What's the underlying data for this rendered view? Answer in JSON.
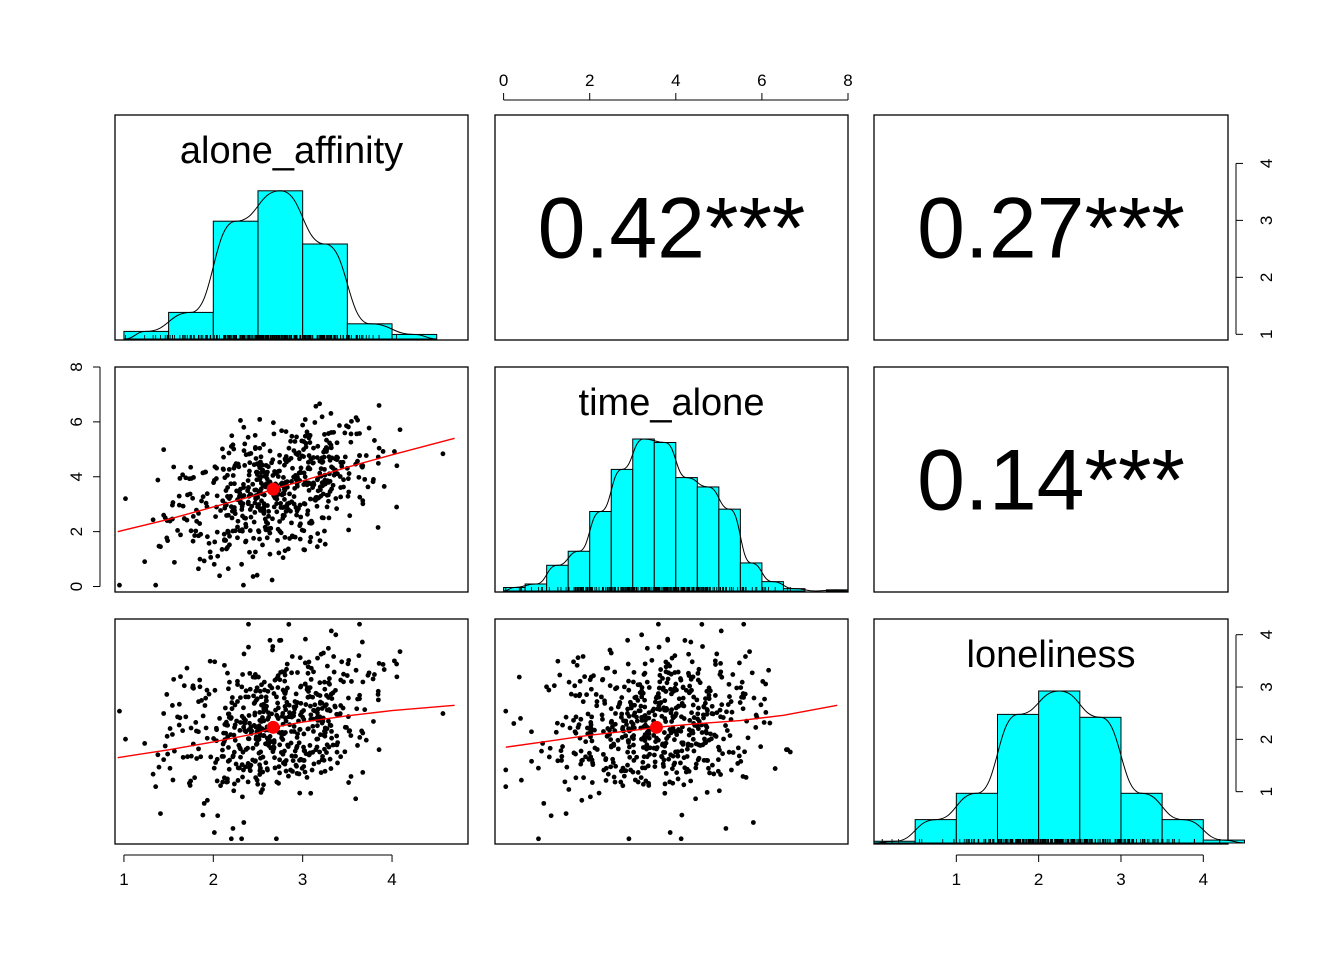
{
  "chart_data": {
    "type": "scatter",
    "variables": [
      "alone_affinity",
      "time_alone",
      "loneliness"
    ],
    "correlations": [
      {
        "pair": [
          "alone_affinity",
          "time_alone"
        ],
        "label": "0.42***"
      },
      {
        "pair": [
          "alone_affinity",
          "loneliness"
        ],
        "label": "0.27***"
      },
      {
        "pair": [
          "time_alone",
          "loneliness"
        ],
        "label": "0.14***"
      }
    ],
    "axes": {
      "alone_affinity": {
        "range": [
          0.9,
          4.85
        ],
        "ticks": [
          1,
          2,
          3,
          4
        ]
      },
      "time_alone": {
        "range": [
          -0.2,
          8.0
        ],
        "ticks": [
          0,
          2,
          4,
          6,
          8
        ]
      },
      "loneliness": {
        "range": [
          0.0,
          4.3
        ],
        "ticks": [
          1,
          2,
          3,
          4
        ]
      }
    },
    "histograms": {
      "alone_affinity": {
        "bins": [
          [
            1.0,
            1.5
          ],
          [
            1.5,
            2.0
          ],
          [
            2.0,
            2.5
          ],
          [
            2.5,
            3.0
          ],
          [
            3.0,
            3.5
          ],
          [
            3.5,
            4.0
          ],
          [
            4.0,
            4.5
          ]
        ],
        "heights": [
          0.01,
          0.035,
          0.155,
          0.195,
          0.125,
          0.02,
          0.006
        ],
        "ymax": 0.2
      },
      "time_alone": {
        "bins": [
          [
            0.0,
            0.5
          ],
          [
            0.5,
            1.0
          ],
          [
            1.0,
            1.5
          ],
          [
            1.5,
            2.0
          ],
          [
            2.0,
            2.5
          ],
          [
            2.5,
            3.0
          ],
          [
            3.0,
            3.5
          ],
          [
            3.5,
            4.0
          ],
          [
            4.0,
            4.5
          ],
          [
            4.5,
            5.0
          ],
          [
            5.0,
            5.5
          ],
          [
            5.5,
            6.0
          ],
          [
            6.0,
            6.5
          ],
          [
            6.5,
            7.0
          ],
          [
            7.0,
            7.5
          ],
          [
            7.5,
            8.0
          ]
        ],
        "heights": [
          0.003,
          0.006,
          0.022,
          0.034,
          0.068,
          0.104,
          0.13,
          0.127,
          0.097,
          0.089,
          0.07,
          0.024,
          0.008,
          0.002,
          0.0,
          0.001
        ],
        "ymax": 0.13
      },
      "loneliness": {
        "bins": [
          [
            0.0,
            0.5
          ],
          [
            0.5,
            1.0
          ],
          [
            1.0,
            1.5
          ],
          [
            1.5,
            2.0
          ],
          [
            2.0,
            2.5
          ],
          [
            2.5,
            3.0
          ],
          [
            3.0,
            3.5
          ],
          [
            3.5,
            4.0
          ],
          [
            4.0,
            4.5
          ]
        ],
        "heights": [
          0.003,
          0.04,
          0.085,
          0.22,
          0.26,
          0.215,
          0.085,
          0.04,
          0.005
        ],
        "ymax": 0.26
      }
    },
    "means": {
      "alone_affinity": 2.67,
      "time_alone": 3.55,
      "loneliness": 2.23
    },
    "loess": {
      "time_alone_vs_alone_affinity": [
        [
          0.93,
          2.0
        ],
        [
          1.5,
          2.45
        ],
        [
          2.0,
          2.9
        ],
        [
          2.5,
          3.35
        ],
        [
          2.67,
          3.55
        ],
        [
          3.0,
          3.85
        ],
        [
          3.5,
          4.35
        ],
        [
          4.0,
          4.8
        ],
        [
          4.7,
          5.4
        ]
      ],
      "loneliness_vs_alone_affinity": [
        [
          0.93,
          1.65
        ],
        [
          1.5,
          1.8
        ],
        [
          2.0,
          1.95
        ],
        [
          2.5,
          2.12
        ],
        [
          2.67,
          2.23
        ],
        [
          3.0,
          2.33
        ],
        [
          3.5,
          2.45
        ],
        [
          4.0,
          2.55
        ],
        [
          4.7,
          2.65
        ]
      ],
      "loneliness_vs_time_alone": [
        [
          0.05,
          1.85
        ],
        [
          1.0,
          1.96
        ],
        [
          2.0,
          2.08
        ],
        [
          3.0,
          2.17
        ],
        [
          3.55,
          2.23
        ],
        [
          4.5,
          2.3
        ],
        [
          5.5,
          2.36
        ],
        [
          6.5,
          2.46
        ],
        [
          7.75,
          2.65
        ]
      ]
    },
    "colors": {
      "histogram": "#00ffff",
      "points": "#000000",
      "smoother": "#ff0000",
      "mean": "#ff0000"
    }
  }
}
